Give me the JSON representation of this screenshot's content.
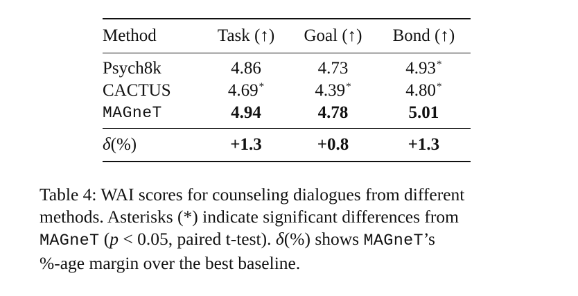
{
  "table": {
    "headers": [
      "Method",
      "Task (↑)",
      "Goal (↑)",
      "Bond (↑)"
    ],
    "rows": [
      {
        "method": "Psych8k",
        "task": "4.86",
        "task_star": "",
        "goal": "4.73",
        "goal_star": "",
        "bond": "4.93",
        "bond_star": "*"
      },
      {
        "method": "CACTUS",
        "task": "4.69",
        "task_star": "*",
        "goal": "4.39",
        "goal_star": "*",
        "bond": "4.80",
        "bond_star": "*"
      },
      {
        "method": "MAGneT",
        "task": "4.94",
        "goal": "4.78",
        "bond": "5.01"
      }
    ],
    "delta": {
      "label_symbol": "δ",
      "label_rest": "(%)",
      "task": "+1.3",
      "goal": "+0.8",
      "bond": "+1.3"
    }
  },
  "caption": {
    "line1": "Table 4: WAI scores for counseling dialogues from different",
    "line2": "methods. Asterisks (*) indicate significant differences from",
    "line3_method": "MAGneT",
    "line3_paren_open": " (",
    "line3_p": "p",
    "line3_cond": " < 0.05, paired t-test). ",
    "line3_delta_symbol": "δ",
    "line3_delta_rest": "(%) shows ",
    "line3_method2": "MAGneT",
    "line3_end": "’s",
    "line4": "%-age margin over the best baseline."
  }
}
